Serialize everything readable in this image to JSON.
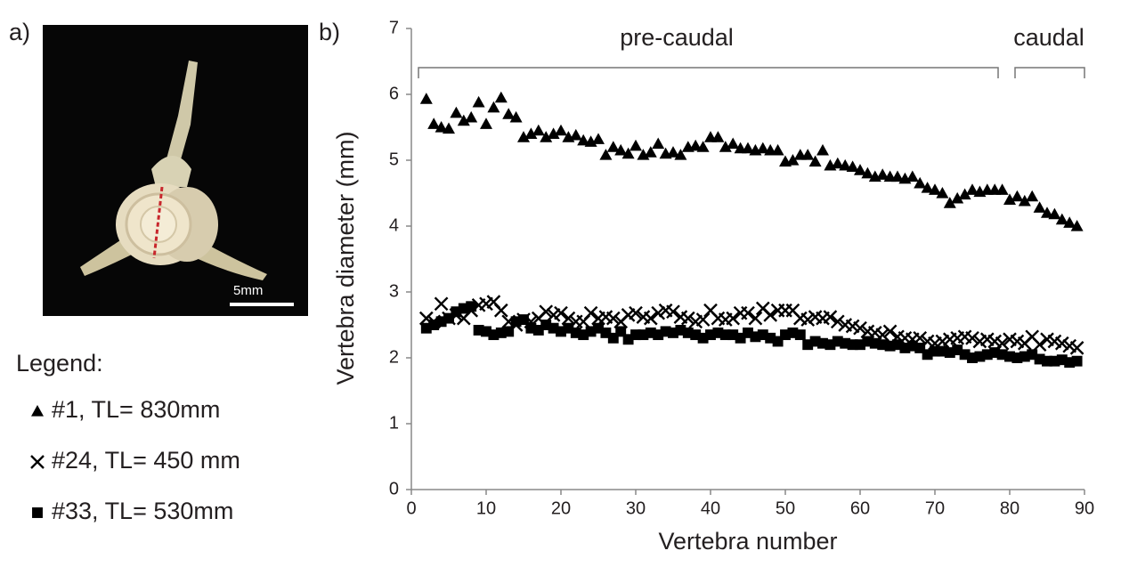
{
  "panel_labels": [
    "a)",
    "b)"
  ],
  "photo": {
    "scale_bar_label": "5mm"
  },
  "legend_title": "Legend:",
  "chart_data": {
    "type": "scatter",
    "x_label": "Vertebra number",
    "y_label": "Vertebra diameter (mm)",
    "annotations": [
      "pre-caudal",
      "caudal"
    ],
    "xlim": [
      0,
      90
    ],
    "xticks": [
      0,
      10,
      20,
      30,
      40,
      50,
      60,
      70,
      80,
      90
    ],
    "ylim": [
      0,
      7
    ],
    "yticks": [
      0,
      1,
      2,
      3,
      4,
      5,
      6,
      7
    ],
    "grid": false,
    "x": [
      2,
      3,
      4,
      5,
      6,
      7,
      8,
      9,
      10,
      11,
      12,
      13,
      14,
      15,
      16,
      17,
      18,
      19,
      20,
      21,
      22,
      23,
      24,
      25,
      26,
      27,
      28,
      29,
      30,
      31,
      32,
      33,
      34,
      35,
      36,
      37,
      38,
      39,
      40,
      41,
      42,
      43,
      44,
      45,
      46,
      47,
      48,
      49,
      50,
      51,
      52,
      53,
      54,
      55,
      56,
      57,
      58,
      59,
      60,
      61,
      62,
      63,
      64,
      65,
      66,
      67,
      68,
      69,
      70,
      71,
      72,
      73,
      74,
      75,
      76,
      77,
      78,
      79,
      80,
      81,
      82,
      83,
      84,
      85,
      86,
      87,
      88,
      89
    ],
    "series": [
      {
        "name": "#1, TL= 830mm",
        "color": "#000000",
        "marker": "triangle",
        "values": [
          5.93,
          5.55,
          5.5,
          5.48,
          5.72,
          5.6,
          5.65,
          5.88,
          5.55,
          5.8,
          5.95,
          5.7,
          5.65,
          5.35,
          5.4,
          5.45,
          5.35,
          5.4,
          5.45,
          5.35,
          5.38,
          5.3,
          5.28,
          5.32,
          5.08,
          5.2,
          5.15,
          5.1,
          5.22,
          5.08,
          5.12,
          5.25,
          5.1,
          5.12,
          5.08,
          5.2,
          5.22,
          5.2,
          5.35,
          5.35,
          5.2,
          5.25,
          5.18,
          5.18,
          5.15,
          5.18,
          5.15,
          5.15,
          4.98,
          5.0,
          5.08,
          5.08,
          4.98,
          5.15,
          4.92,
          4.95,
          4.92,
          4.9,
          4.85,
          4.8,
          4.75,
          4.78,
          4.75,
          4.75,
          4.72,
          4.75,
          4.65,
          4.58,
          4.55,
          4.5,
          4.35,
          4.42,
          4.48,
          4.55,
          4.52,
          4.55,
          4.55,
          4.55,
          4.4,
          4.45,
          4.38,
          4.45,
          4.28,
          4.2,
          4.18,
          4.1,
          4.05,
          4.0
        ]
      },
      {
        "name": "#24, TL= 450 mm",
        "color": "#000000",
        "marker": "x",
        "values": [
          2.6,
          2.55,
          2.82,
          2.6,
          2.65,
          2.6,
          2.72,
          2.8,
          2.82,
          2.85,
          2.72,
          2.55,
          2.5,
          2.58,
          2.55,
          2.6,
          2.7,
          2.65,
          2.68,
          2.6,
          2.55,
          2.55,
          2.68,
          2.6,
          2.62,
          2.6,
          2.55,
          2.65,
          2.68,
          2.62,
          2.6,
          2.68,
          2.72,
          2.7,
          2.62,
          2.6,
          2.55,
          2.58,
          2.72,
          2.6,
          2.58,
          2.6,
          2.68,
          2.68,
          2.6,
          2.75,
          2.65,
          2.72,
          2.72,
          2.72,
          2.6,
          2.58,
          2.62,
          2.6,
          2.62,
          2.55,
          2.5,
          2.48,
          2.45,
          2.4,
          2.38,
          2.35,
          2.4,
          2.32,
          2.3,
          2.28,
          2.3,
          2.25,
          2.22,
          2.25,
          2.28,
          2.3,
          2.32,
          2.3,
          2.25,
          2.28,
          2.25,
          2.22,
          2.28,
          2.25,
          2.22,
          2.32,
          2.2,
          2.28,
          2.25,
          2.22,
          2.18,
          2.15
        ]
      },
      {
        "name": "#33, TL= 530mm",
        "color": "#000000",
        "marker": "square",
        "values": [
          2.45,
          2.5,
          2.55,
          2.6,
          2.7,
          2.75,
          2.78,
          2.42,
          2.4,
          2.35,
          2.38,
          2.4,
          2.55,
          2.58,
          2.45,
          2.42,
          2.5,
          2.45,
          2.4,
          2.45,
          2.38,
          2.35,
          2.4,
          2.45,
          2.38,
          2.3,
          2.4,
          2.28,
          2.35,
          2.35,
          2.38,
          2.35,
          2.4,
          2.38,
          2.42,
          2.38,
          2.35,
          2.3,
          2.35,
          2.38,
          2.35,
          2.35,
          2.3,
          2.38,
          2.32,
          2.35,
          2.3,
          2.25,
          2.35,
          2.38,
          2.35,
          2.2,
          2.25,
          2.22,
          2.2,
          2.25,
          2.22,
          2.2,
          2.2,
          2.25,
          2.22,
          2.2,
          2.18,
          2.2,
          2.15,
          2.18,
          2.15,
          2.05,
          2.1,
          2.1,
          2.08,
          2.12,
          2.05,
          2.0,
          2.02,
          2.05,
          2.08,
          2.05,
          2.02,
          2.0,
          2.02,
          2.05,
          1.98,
          1.95,
          1.95,
          1.97,
          1.93,
          1.95
        ]
      }
    ]
  }
}
